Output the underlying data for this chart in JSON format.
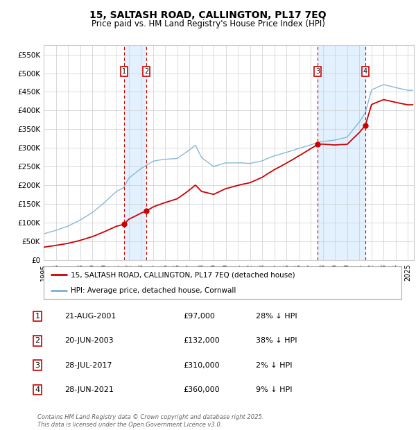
{
  "title": "15, SALTASH ROAD, CALLINGTON, PL17 7EQ",
  "subtitle": "Price paid vs. HM Land Registry's House Price Index (HPI)",
  "ylabel_ticks": [
    "£0",
    "£50K",
    "£100K",
    "£150K",
    "£200K",
    "£250K",
    "£300K",
    "£350K",
    "£400K",
    "£450K",
    "£500K",
    "£550K"
  ],
  "ytick_vals": [
    0,
    50000,
    100000,
    150000,
    200000,
    250000,
    300000,
    350000,
    400000,
    450000,
    500000,
    550000
  ],
  "ylim": [
    0,
    575000
  ],
  "xlim_start": 1995.0,
  "xlim_end": 2025.5,
  "transactions": [
    {
      "num": 1,
      "year": 2001.646,
      "price": 97000,
      "date": "21-AUG-2001",
      "pct": "28%"
    },
    {
      "num": 2,
      "year": 2003.472,
      "price": 132000,
      "date": "20-JUN-2003",
      "pct": "38%"
    },
    {
      "num": 3,
      "year": 2017.569,
      "price": 310000,
      "date": "28-JUL-2017",
      "pct": "2%"
    },
    {
      "num": 4,
      "year": 2021.486,
      "price": 360000,
      "date": "28-JUN-2021",
      "pct": "9%"
    }
  ],
  "hpi_x": [
    1995,
    1996,
    1997,
    1998,
    1999,
    2000,
    2001,
    2001.6,
    2002,
    2003,
    2003.5,
    2004,
    2005,
    2006,
    2007,
    2007.5,
    2008,
    2009,
    2010,
    2011,
    2012,
    2013,
    2014,
    2015,
    2016,
    2017,
    2017.6,
    2018,
    2019,
    2020,
    2021,
    2021.5,
    2022,
    2023,
    2024,
    2025
  ],
  "hpi_y": [
    70000,
    80000,
    92000,
    108000,
    128000,
    155000,
    185000,
    195000,
    220000,
    245000,
    255000,
    265000,
    270000,
    272000,
    295000,
    308000,
    275000,
    250000,
    260000,
    260000,
    258000,
    265000,
    278000,
    288000,
    298000,
    308000,
    315000,
    318000,
    322000,
    330000,
    370000,
    395000,
    455000,
    470000,
    462000,
    455000
  ],
  "legend_line1": "15, SALTASH ROAD, CALLINGTON, PL17 7EQ (detached house)",
  "legend_line2": "HPI: Average price, detached house, Cornwall",
  "table_rows": [
    {
      "num": 1,
      "date": "21-AUG-2001",
      "price": "£97,000",
      "pct": "28% ↓ HPI"
    },
    {
      "num": 2,
      "date": "20-JUN-2003",
      "price": "£132,000",
      "pct": "38% ↓ HPI"
    },
    {
      "num": 3,
      "date": "28-JUL-2017",
      "price": "£310,000",
      "pct": "2% ↓ HPI"
    },
    {
      "num": 4,
      "date": "28-JUN-2021",
      "price": "£360,000",
      "pct": "9% ↓ HPI"
    }
  ],
  "footer": "Contains HM Land Registry data © Crown copyright and database right 2025.\nThis data is licensed under the Open Government Licence v3.0.",
  "red_color": "#cc0000",
  "blue_color": "#7ab0d4",
  "shade_color": "#ddeeff",
  "bg_color": "#ffffff",
  "grid_color": "#cccccc"
}
